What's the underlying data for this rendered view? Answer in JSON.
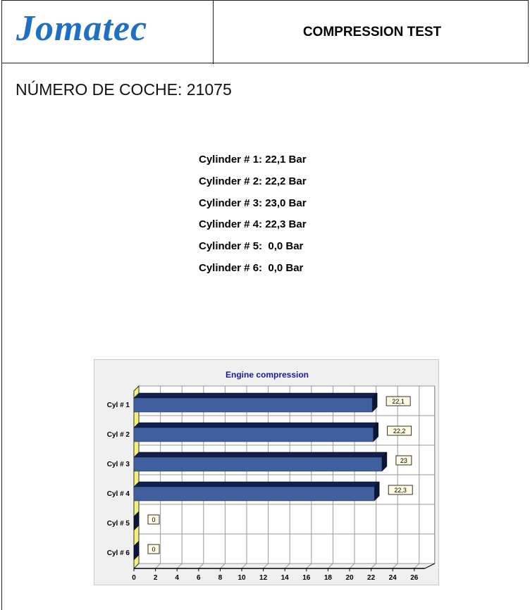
{
  "header": {
    "logo": "Jomatec",
    "title": "COMPRESSION TEST"
  },
  "car_number_label": "NÚMERO DE COCHE: 21075",
  "readings": [
    "Cylinder # 1: 22,1 Bar",
    "Cylinder # 2: 22,2 Bar",
    "Cylinder # 3: 23,0 Bar",
    "Cylinder # 4: 22,3 Bar",
    "Cylinder # 5:  0,0 Bar",
    "Cylinder # 6:  0,0 Bar"
  ],
  "colors": {
    "logo": "#1f6fc5",
    "bar": "#3f5f9f",
    "bar_top": "#102050",
    "title": "#1a1aa0",
    "axis_wall": "#f5f07a"
  },
  "chart_data": {
    "type": "bar",
    "orientation": "horizontal",
    "title": "Engine compression",
    "categories": [
      "Cyl # 1",
      "Cyl # 2",
      "Cyl # 3",
      "Cyl # 4",
      "Cyl # 5",
      "Cyl # 6"
    ],
    "values": [
      22.1,
      22.2,
      23,
      22.3,
      0,
      0
    ],
    "data_labels": [
      "22,1",
      "22,2",
      "23",
      "22,3",
      "0",
      "0"
    ],
    "xlim": [
      0,
      26
    ],
    "xticks": [
      0,
      2,
      4,
      6,
      8,
      10,
      12,
      14,
      16,
      18,
      20,
      22,
      24,
      26
    ],
    "grid": true,
    "style": "3d"
  }
}
